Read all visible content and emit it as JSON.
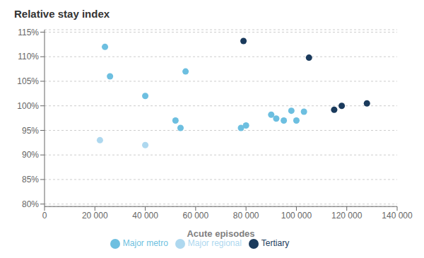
{
  "chart_data": {
    "type": "scatter",
    "title": "Relative stay index",
    "x_label": "Acute episodes",
    "xlim": [
      0,
      140000
    ],
    "ylim": [
      0.795,
      1.155
    ],
    "xticks": [
      0,
      {
        "value": 20000,
        "label": "20 000"
      },
      {
        "value": 40000,
        "label": "40 000"
      },
      {
        "value": 60000,
        "label": "60 000"
      },
      {
        "value": 80000,
        "label": "80 000"
      },
      {
        "value": 100000,
        "label": "100 000"
      },
      {
        "value": 120000,
        "label": "120 000"
      },
      {
        "value": 140000,
        "label": "140 000"
      }
    ],
    "yticks": [
      {
        "value": 0.8,
        "label": "80%"
      },
      {
        "value": 0.85,
        "label": "85%"
      },
      {
        "value": 0.9,
        "label": "90%"
      },
      {
        "value": 0.95,
        "label": "95%"
      },
      {
        "value": 1.0,
        "label": "100%"
      },
      {
        "value": 1.05,
        "label": "105%"
      },
      {
        "value": 1.1,
        "label": "110%"
      },
      {
        "value": 1.15,
        "label": "115%"
      }
    ],
    "grid": true,
    "legend": "bottom",
    "series": [
      {
        "name": "Major regional",
        "color": "#aed8ef",
        "x": [
          22000,
          40000
        ],
        "values": [
          0.93,
          0.92
        ]
      },
      {
        "name": "Major metro",
        "color": "#6dbfe0",
        "x": [
          24000,
          26000,
          40000,
          52000,
          54000,
          56000,
          78000,
          80000,
          90000,
          92000,
          95000,
          98000,
          100000,
          103000
        ],
        "values": [
          1.12,
          1.06,
          1.02,
          0.97,
          0.955,
          1.07,
          0.955,
          0.96,
          0.982,
          0.974,
          0.97,
          0.99,
          0.97,
          0.988
        ]
      },
      {
        "name": "Tertiary",
        "color": "#1a3a5c",
        "x": [
          79000,
          105000,
          115000,
          118000,
          128000
        ],
        "values": [
          1.132,
          1.098,
          0.992,
          1.0,
          1.005
        ]
      }
    ]
  }
}
